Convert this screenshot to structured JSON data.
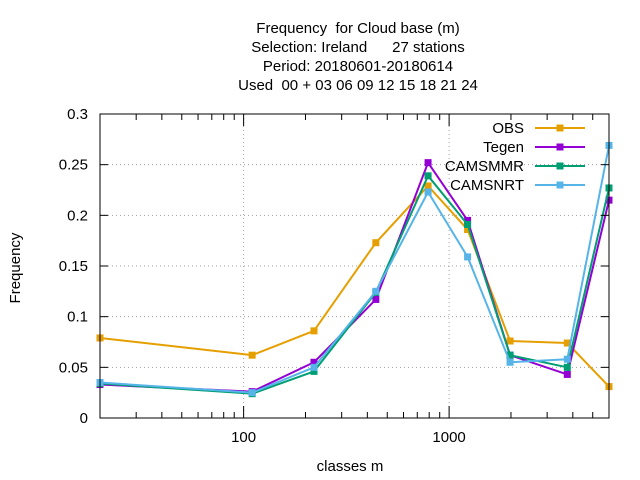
{
  "chart_data": {
    "type": "line",
    "title_lines": [
      "Frequency  for Cloud base (m)",
      "Selection: Ireland      27 stations",
      "Period: 20180601-20180614",
      "Used  00 + 03 06 09 12 15 18 21 24"
    ],
    "xlabel": "classes m",
    "ylabel": "Frequency",
    "xscale": "log",
    "xlim": [
      20,
      6000
    ],
    "ylim": [
      0,
      0.3
    ],
    "xticks": [
      {
        "value": 100,
        "label": "100"
      },
      {
        "value": 1000,
        "label": "1000"
      }
    ],
    "x_minor_ticks": [
      20,
      30,
      40,
      50,
      60,
      70,
      80,
      90,
      200,
      300,
      400,
      500,
      600,
      700,
      800,
      900,
      2000,
      3000,
      4000,
      5000,
      6000
    ],
    "yticks": [
      {
        "value": 0,
        "label": "0"
      },
      {
        "value": 0.05,
        "label": "0.05"
      },
      {
        "value": 0.1,
        "label": "0.1"
      },
      {
        "value": 0.15,
        "label": "0.15"
      },
      {
        "value": 0.2,
        "label": "0.2"
      },
      {
        "value": 0.25,
        "label": "0.25"
      },
      {
        "value": 0.3,
        "label": "0.3"
      }
    ],
    "grid": true,
    "legend_position": "top-right",
    "x": [
      20,
      110,
      220,
      440,
      790,
      1230,
      1980,
      3760,
      6000
    ],
    "series": [
      {
        "name": "OBS",
        "color": "#e69f00",
        "marker": "filled-square",
        "values": [
          0.079,
          0.062,
          0.086,
          0.173,
          0.229,
          0.186,
          0.076,
          0.074,
          0.031
        ]
      },
      {
        "name": "Tegen",
        "color": "#9400d3",
        "marker": "filled-square",
        "values": [
          0.033,
          0.026,
          0.055,
          0.117,
          0.252,
          0.195,
          0.062,
          0.043,
          0.215
        ]
      },
      {
        "name": "CAMSMMR",
        "color": "#009e73",
        "marker": "filled-square",
        "values": [
          0.034,
          0.024,
          0.046,
          0.124,
          0.239,
          0.191,
          0.062,
          0.05,
          0.227
        ]
      },
      {
        "name": "CAMSNRT",
        "color": "#56b4e9",
        "marker": "filled-square",
        "values": [
          0.035,
          0.025,
          0.05,
          0.125,
          0.223,
          0.159,
          0.055,
          0.058,
          0.269
        ]
      }
    ]
  }
}
